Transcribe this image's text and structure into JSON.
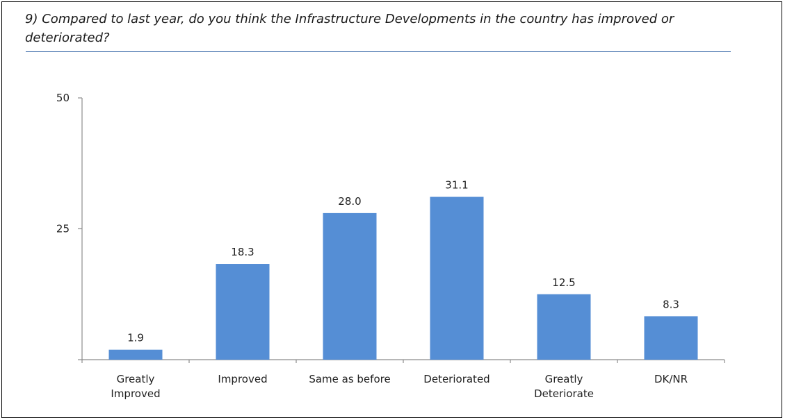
{
  "question": "9) Compared to last year, do you think the Infrastructure Developments in the country has improved or deteriorated?",
  "bar_color": "#558ed5",
  "chart_data": {
    "type": "bar",
    "categories": [
      [
        "Greatly",
        "Improved"
      ],
      [
        "Improved"
      ],
      [
        "Same as before"
      ],
      [
        "Deteriorated"
      ],
      [
        "Greatly",
        "Deteriorate"
      ],
      [
        "DK/NR"
      ]
    ],
    "values": [
      1.9,
      18.3,
      28.0,
      31.1,
      12.5,
      8.3
    ],
    "value_labels": [
      "1.9",
      "18.3",
      "28.0",
      "31.1",
      "12.5",
      "8.3"
    ],
    "ylim": [
      0,
      50
    ],
    "yticks": [
      25,
      50
    ],
    "ytick_labels": [
      "25",
      "50"
    ],
    "grid": false,
    "legend": "none"
  }
}
